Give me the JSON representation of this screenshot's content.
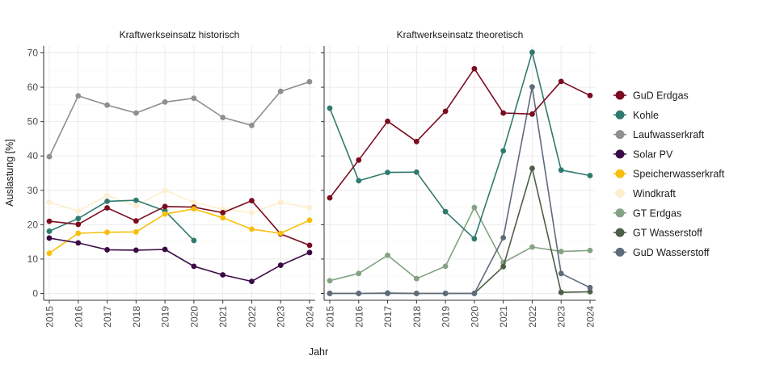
{
  "chart_data": {
    "type": "line",
    "xlabel": "Jahr",
    "ylabel": "Auslastung [%]",
    "ylim": [
      -2,
      72
    ],
    "yticks": [
      0,
      10,
      20,
      30,
      40,
      50,
      60,
      70
    ],
    "x": [
      2015,
      2016,
      2017,
      2018,
      2019,
      2020,
      2021,
      2022,
      2023,
      2024
    ],
    "x_tick_labels": [
      "2015",
      "2016",
      "2017",
      "2018",
      "2019",
      "2020",
      "2021",
      "2022",
      "2023",
      "2024"
    ],
    "grid": true,
    "legend_position": "right",
    "series_styles": [
      {
        "name": "GuD Erdgas",
        "color": "#7b0c1f"
      },
      {
        "name": "Kohle",
        "color": "#2f7a6e"
      },
      {
        "name": "Laufwasserkraft",
        "color": "#8f8f8f"
      },
      {
        "name": "Solar PV",
        "color": "#3b0a45"
      },
      {
        "name": "Speicherwasserkraft",
        "color": "#f7bf0a"
      },
      {
        "name": "Windkraft",
        "color": "#fcefcf"
      },
      {
        "name": "GT Erdgas",
        "color": "#84a383"
      },
      {
        "name": "GT Wasserstoff",
        "color": "#4d5e46"
      },
      {
        "name": "GuD Wasserstoff",
        "color": "#5e6b7b"
      }
    ],
    "panels": [
      {
        "title": "Kraftwerkseinsatz historisch",
        "series": [
          {
            "name": "Windkraft",
            "values": [
              26.5,
              24.0,
              28.5,
              25.5,
              30.0,
              26.5,
              24.5,
              23.5,
              26.5,
              25.0
            ]
          },
          {
            "name": "Laufwasserkraft",
            "values": [
              39.8,
              57.5,
              54.8,
              52.5,
              55.7,
              56.8,
              51.2,
              48.9,
              58.8,
              61.6
            ]
          },
          {
            "name": "Kohle",
            "values": [
              18.1,
              21.8,
              26.8,
              27.1,
              24.0,
              15.4,
              null,
              null,
              null,
              null
            ]
          },
          {
            "name": "GuD Erdgas",
            "values": [
              21.0,
              20.1,
              24.9,
              21.1,
              25.3,
              25.1,
              23.5,
              27.0,
              17.3,
              14.0
            ]
          },
          {
            "name": "Speicherwasserkraft",
            "values": [
              11.7,
              17.5,
              17.8,
              17.9,
              23.1,
              24.6,
              22.0,
              18.7,
              17.5,
              21.3
            ]
          },
          {
            "name": "Solar PV",
            "values": [
              16.1,
              14.7,
              12.7,
              12.6,
              12.8,
              7.9,
              5.4,
              3.5,
              8.2,
              11.9
            ]
          }
        ]
      },
      {
        "title": "Kraftwerkseinsatz theoretisch",
        "series": [
          {
            "name": "GT Erdgas",
            "values": [
              3.7,
              5.8,
              11.1,
              4.3,
              7.9,
              25.0,
              9.0,
              13.5,
              12.2,
              12.5
            ]
          },
          {
            "name": "GT Wasserstoff",
            "values": [
              0,
              0,
              0.1,
              0,
              0,
              0,
              7.8,
              36.4,
              0.3,
              0.5
            ]
          },
          {
            "name": "GuD Wasserstoff",
            "values": [
              0,
              0,
              0,
              0,
              0,
              0,
              16.2,
              60.1,
              5.8,
              1.7
            ]
          },
          {
            "name": "Kohle",
            "values": [
              53.9,
              32.8,
              35.2,
              35.3,
              23.8,
              15.9,
              41.5,
              70.2,
              35.9,
              34.3
            ]
          },
          {
            "name": "GuD Erdgas",
            "values": [
              27.8,
              38.8,
              50.1,
              44.2,
              53.0,
              65.4,
              52.5,
              52.2,
              61.7,
              57.6
            ]
          }
        ]
      }
    ]
  }
}
